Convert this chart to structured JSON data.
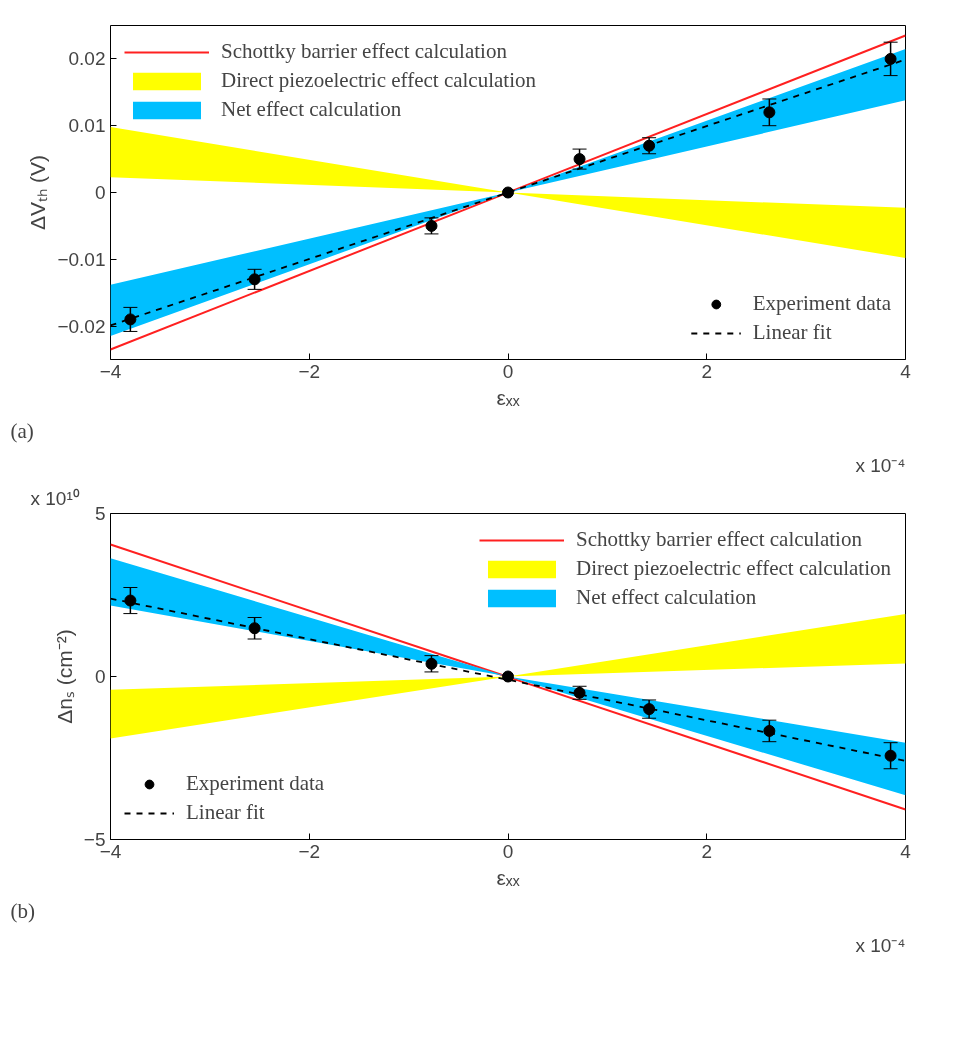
{
  "chart_data": [
    {
      "type": "line",
      "xlabel": "εₓₓ",
      "ylabel": "ΔVₜₕ (V)",
      "xlim": [
        -4,
        4
      ],
      "ylim": [
        -0.025,
        0.025
      ],
      "xticks": [
        -4,
        -2,
        0,
        2,
        4
      ],
      "yticks": [
        -0.02,
        -0.01,
        0,
        0.01,
        0.02
      ],
      "grid": false,
      "legend": "top left",
      "annotations": [
        "(a)",
        "x 10⁻⁴"
      ],
      "series": [
        {
          "name": "Schottky barrier effect calculation",
          "color": "#ff2020",
          "line_style": "solid",
          "x": [
            -4,
            4
          ],
          "values": [
            -0.0235,
            0.0235
          ]
        },
        {
          "name": "Direct piezoelectric effect calculation",
          "type": "area",
          "color": "#ffff00",
          "x": [
            -4,
            0,
            4,
            4,
            0,
            -4
          ],
          "values": [
            0.0098,
            0,
            -0.0023,
            -0.0098,
            0,
            0.0023
          ]
        },
        {
          "name": "Net effect calculation",
          "type": "area",
          "color": "#00bfff",
          "x": [
            -4,
            0,
            4,
            4,
            0,
            -4
          ],
          "values": [
            -0.0138,
            0,
            0.0215,
            0.0138,
            0,
            -0.0215
          ]
        },
        {
          "name": "Experiment data",
          "type": "scatter",
          "color": "#000000",
          "marker": "circle",
          "x": [
            -3.8,
            -2.55,
            -0.77,
            0,
            0.72,
            1.42,
            2.63,
            3.85
          ],
          "values": [
            -0.019,
            -0.013,
            -0.005,
            0,
            0.005,
            0.007,
            0.012,
            0.02
          ],
          "errors": [
            0.0018,
            0.0015,
            0.0012,
            null,
            0.0015,
            0.0012,
            0.002,
            0.0025
          ]
        },
        {
          "name": "Linear fit",
          "color": "#000000",
          "line_style": "dashed",
          "x": [
            -4,
            4
          ],
          "values": [
            -0.0199,
            0.0199
          ]
        }
      ]
    },
    {
      "type": "line",
      "xlabel": "εₓₓ",
      "ylabel": "Δnₛ (cm⁻²)",
      "xlim": [
        -4,
        4
      ],
      "ylim": [
        -5,
        5
      ],
      "xticks": [
        -4,
        -2,
        0,
        2,
        4
      ],
      "yticks": [
        -5,
        0,
        5
      ],
      "grid": false,
      "legend": "top right",
      "annotations": [
        "x 10¹⁰",
        "(b)",
        "x 10⁻⁴"
      ],
      "series": [
        {
          "name": "Schottky barrier effect calculation",
          "color": "#ff2020",
          "line_style": "solid",
          "x": [
            -4,
            4
          ],
          "values": [
            4.05,
            -4.08
          ]
        },
        {
          "name": "Direct piezoelectric effect calculation",
          "type": "area",
          "color": "#ffff00",
          "x": [
            -4,
            0,
            4,
            4,
            0,
            -4
          ],
          "values": [
            -0.41,
            0,
            1.92,
            0.4,
            0,
            -1.9
          ]
        },
        {
          "name": "Net effect calculation",
          "type": "area",
          "color": "#00bfff",
          "x": [
            -4,
            0,
            4,
            4,
            0,
            -4
          ],
          "values": [
            3.63,
            0,
            -2.03,
            -3.64,
            0,
            2.18
          ]
        },
        {
          "name": "Experiment data",
          "type": "scatter",
          "color": "#000000",
          "marker": "circle",
          "x": [
            -3.8,
            -2.55,
            -0.77,
            0,
            0.72,
            1.42,
            2.63,
            3.85
          ],
          "values": [
            2.33,
            1.48,
            0.39,
            0,
            -0.5,
            -1.0,
            -1.67,
            -2.43
          ],
          "errors": [
            0.4,
            0.33,
            0.25,
            null,
            0.2,
            0.28,
            0.33,
            0.4
          ]
        },
        {
          "name": "Linear fit",
          "color": "#000000",
          "line_style": "dashed",
          "x": [
            -4,
            4
          ],
          "values": [
            2.39,
            -2.59
          ]
        }
      ]
    }
  ]
}
